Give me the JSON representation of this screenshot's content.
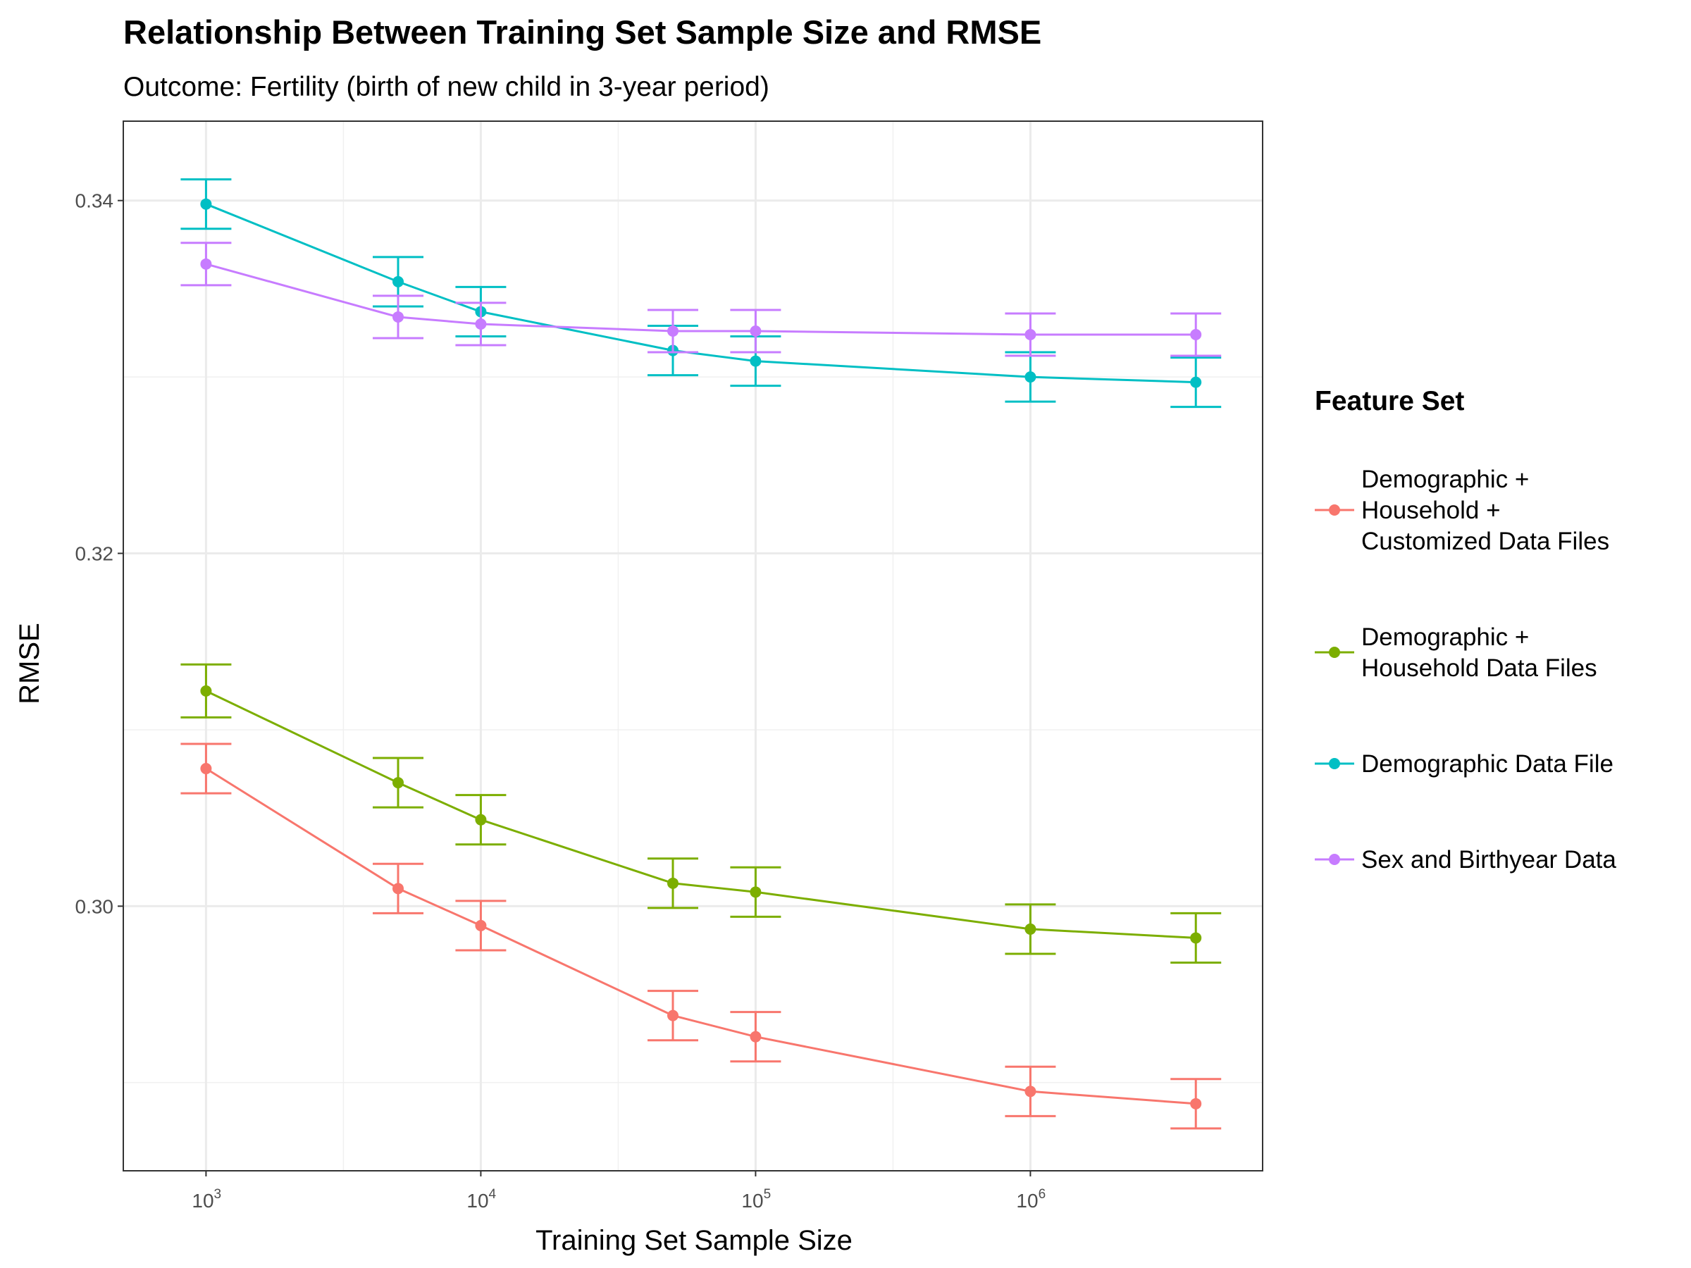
{
  "chart_data": {
    "type": "line",
    "title": "Relationship Between Training Set Sample Size and RMSE",
    "subtitle": "Outcome: Fertility (birth of new child in 3-year period)",
    "xlabel": "Training Set Sample Size",
    "ylabel": "RMSE",
    "x_scale": "log10",
    "xlim": [
      500,
      7000000
    ],
    "ylim": [
      0.285,
      0.3445
    ],
    "x_ticks": [
      {
        "value": 1000,
        "base": "10",
        "exp": "3"
      },
      {
        "value": 10000,
        "base": "10",
        "exp": "4"
      },
      {
        "value": 100000,
        "base": "10",
        "exp": "5"
      },
      {
        "value": 1000000,
        "base": "10",
        "exp": "6"
      }
    ],
    "y_ticks": [
      {
        "value": 0.3,
        "label": "0.30"
      },
      {
        "value": 0.32,
        "label": "0.32"
      },
      {
        "value": 0.34,
        "label": "0.34"
      }
    ],
    "x_minor_grid": [
      3162.28,
      31622.8,
      316228
    ],
    "y_minor_grid": [
      0.29,
      0.31,
      0.33
    ],
    "grid": true,
    "legend": {
      "title": "Feature Set",
      "position": "right"
    },
    "x": [
      1000,
      5000,
      10000,
      50000,
      100000,
      1000000,
      4000000
    ],
    "series": [
      {
        "name": "Demographic + Household + Customized Data Files",
        "label_lines": [
          "Demographic +",
          "Household +",
          "Customized Data Files"
        ],
        "color": "#f8766d",
        "y": [
          0.3078,
          0.301,
          0.2989,
          0.2938,
          0.2926,
          0.2895,
          0.2888
        ],
        "err": [
          0.0014,
          0.0014,
          0.0014,
          0.0014,
          0.0014,
          0.0014,
          0.0014
        ]
      },
      {
        "name": "Demographic + Household Data Files",
        "label_lines": [
          "Demographic +",
          "Household Data Files"
        ],
        "color": "#7cae00",
        "y": [
          0.3122,
          0.307,
          0.3049,
          0.3013,
          0.3008,
          0.2987,
          0.2982
        ],
        "err": [
          0.0015,
          0.0014,
          0.0014,
          0.0014,
          0.0014,
          0.0014,
          0.0014
        ]
      },
      {
        "name": "Demographic Data File",
        "label_lines": [
          "Demographic Data File"
        ],
        "color": "#00bfc4",
        "y": [
          0.3398,
          0.3354,
          0.3337,
          0.3315,
          0.3309,
          0.33,
          0.3297
        ],
        "err": [
          0.0014,
          0.0014,
          0.0014,
          0.0014,
          0.0014,
          0.0014,
          0.0014
        ]
      },
      {
        "name": "Sex and Birthyear Data",
        "label_lines": [
          "Sex and Birthyear Data"
        ],
        "color": "#c77cff",
        "y": [
          0.3364,
          0.3334,
          0.333,
          0.3326,
          0.3326,
          0.3324,
          0.3324
        ],
        "err": [
          0.0012,
          0.0012,
          0.0012,
          0.0012,
          0.0012,
          0.0012,
          0.0012
        ]
      }
    ]
  }
}
